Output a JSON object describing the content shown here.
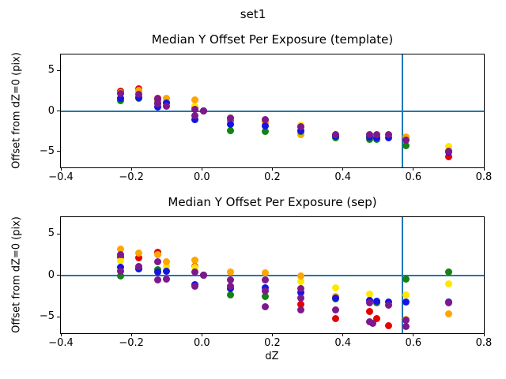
{
  "figure": {
    "suptitle": "set1",
    "background": "#ffffff",
    "text_color": "#000000",
    "spine_color": "#000000",
    "refline_color": "#1f77b4",
    "xlabel": "dZ",
    "ylabel": "Offset from dZ=0 (pix)"
  },
  "chart_data": [
    {
      "type": "scatter",
      "title": "Median Y Offset Per Exposure (template)",
      "ylabel": "Offset from dZ=0 (pix)",
      "xlabel": "",
      "xlim": [
        -0.4,
        0.8
      ],
      "ylim": [
        -7,
        7
      ],
      "grid": false,
      "legend": "none",
      "xticks": {
        "values": [
          -0.4,
          -0.2,
          0.0,
          0.2,
          0.4,
          0.6,
          0.8
        ],
        "labels": [
          "−0.4",
          "−0.2",
          "0.0",
          "0.2",
          "0.4",
          "0.6",
          "0.8"
        ]
      },
      "yticks": {
        "values": [
          5,
          0,
          -5
        ],
        "labels": [
          "5",
          "0",
          "−5"
        ]
      },
      "hline_y": 0,
      "vline_x": 0.57,
      "series": [
        {
          "name": "red",
          "color": "#e60000",
          "points": [
            [
              -0.23,
              2.45
            ],
            [
              -0.18,
              2.7
            ],
            [
              -0.125,
              1.55
            ],
            [
              -0.1,
              1.15
            ],
            [
              -0.02,
              0.45
            ],
            [
              0.005,
              0
            ],
            [
              0.08,
              -1.15
            ],
            [
              0.18,
              -1.25
            ],
            [
              0.28,
              -2.0
            ],
            [
              0.38,
              -3.0
            ],
            [
              0.475,
              -3.05
            ],
            [
              0.7,
              -5.65
            ]
          ]
        },
        {
          "name": "yellow",
          "color": "#ffe700",
          "points": [
            [
              -0.23,
              2.2
            ],
            [
              -0.18,
              2.35
            ],
            [
              -0.125,
              1.15
            ],
            [
              -0.1,
              1.3
            ],
            [
              -0.02,
              0.6
            ],
            [
              0.005,
              0
            ],
            [
              0.08,
              -0.9
            ],
            [
              0.18,
              -1.35
            ],
            [
              0.28,
              -1.75
            ],
            [
              0.38,
              -2.9
            ],
            [
              0.475,
              -2.95
            ],
            [
              0.7,
              -4.45
            ]
          ]
        },
        {
          "name": "orange",
          "color": "#ffa500",
          "points": [
            [
              -0.23,
              2.3
            ],
            [
              -0.18,
              2.55
            ],
            [
              -0.125,
              1.3
            ],
            [
              -0.1,
              1.55
            ],
            [
              -0.02,
              1.35
            ],
            [
              0.005,
              0
            ],
            [
              0.08,
              -1.0
            ],
            [
              0.18,
              -1.5
            ],
            [
              0.28,
              -2.95
            ],
            [
              0.38,
              -3.05
            ],
            [
              0.495,
              -3.2
            ],
            [
              0.58,
              -3.25
            ]
          ]
        },
        {
          "name": "green",
          "color": "#148214",
          "points": [
            [
              -0.23,
              1.3
            ],
            [
              -0.18,
              1.6
            ],
            [
              -0.125,
              0.95
            ],
            [
              0.005,
              0
            ],
            [
              0.08,
              -2.45
            ],
            [
              0.18,
              -2.5
            ],
            [
              0.28,
              -2.55
            ],
            [
              0.38,
              -3.35
            ],
            [
              0.475,
              -3.5
            ],
            [
              0.495,
              -3.55
            ],
            [
              0.58,
              -4.35
            ]
          ]
        },
        {
          "name": "blue",
          "color": "#1414e6",
          "points": [
            [
              -0.23,
              1.6
            ],
            [
              -0.18,
              1.7
            ],
            [
              -0.125,
              0.5
            ],
            [
              -0.1,
              1.0
            ],
            [
              -0.02,
              -1.05
            ],
            [
              0.005,
              0
            ],
            [
              0.08,
              -1.7
            ],
            [
              0.18,
              -1.85
            ],
            [
              0.28,
              -2.45
            ],
            [
              0.38,
              -3.15
            ],
            [
              0.475,
              -3.25
            ],
            [
              0.495,
              -3.3
            ],
            [
              0.53,
              -3.3
            ],
            [
              0.7,
              -5.1
            ]
          ]
        },
        {
          "name": "purple",
          "color": "#7d198c",
          "points": [
            [
              -0.23,
              2.2
            ],
            [
              -0.18,
              2.1
            ],
            [
              -0.125,
              1.5
            ],
            [
              -0.1,
              0.6
            ],
            [
              -0.02,
              0.15
            ],
            [
              0.005,
              0
            ],
            [
              0.08,
              -0.85
            ],
            [
              0.18,
              -1.1
            ],
            [
              0.28,
              -1.95
            ],
            [
              0.38,
              -2.95
            ],
            [
              0.475,
              -2.9
            ],
            [
              0.495,
              -2.95
            ],
            [
              0.53,
              -2.95
            ],
            [
              0.58,
              -3.6
            ],
            [
              0.7,
              -5.0
            ]
          ]
        },
        {
          "name": "purple-b",
          "color": "#7d198c",
          "points": [
            [
              -0.125,
              0.85
            ],
            [
              -0.02,
              -0.55
            ]
          ]
        }
      ]
    },
    {
      "type": "scatter",
      "title": "Median Y Offset Per Exposure (sep)",
      "ylabel": "Offset from dZ=0 (pix)",
      "xlabel": "dZ",
      "xlim": [
        -0.4,
        0.8
      ],
      "ylim": [
        -7,
        7
      ],
      "grid": false,
      "legend": "none",
      "xticks": {
        "values": [
          -0.4,
          -0.2,
          0.0,
          0.2,
          0.4,
          0.6,
          0.8
        ],
        "labels": [
          "−0.4",
          "−0.2",
          "0.0",
          "0.2",
          "0.4",
          "0.6",
          "0.8"
        ]
      },
      "yticks": {
        "values": [
          5,
          0,
          -5
        ],
        "labels": [
          "5",
          "0",
          "−5"
        ]
      },
      "hline_y": 0,
      "vline_x": 0.57,
      "series": [
        {
          "name": "red",
          "color": "#e60000",
          "points": [
            [
              -0.23,
              2.2
            ],
            [
              -0.18,
              2.1
            ],
            [
              -0.125,
              2.8
            ],
            [
              -0.02,
              1.05
            ],
            [
              0.005,
              0
            ],
            [
              0.28,
              -3.5
            ],
            [
              0.38,
              -5.2
            ],
            [
              0.475,
              -4.35
            ],
            [
              0.495,
              -5.2
            ],
            [
              0.53,
              -6.1
            ]
          ]
        },
        {
          "name": "yellow",
          "color": "#ffe700",
          "points": [
            [
              -0.23,
              1.75
            ],
            [
              -0.18,
              0.95
            ],
            [
              -0.125,
              0.5
            ],
            [
              -0.1,
              1.05
            ],
            [
              -0.02,
              0.95
            ],
            [
              0.005,
              0
            ],
            [
              0.28,
              -0.75
            ],
            [
              0.38,
              -1.5
            ],
            [
              0.475,
              -2.3
            ],
            [
              0.58,
              -2.4
            ],
            [
              0.7,
              -1.0
            ]
          ]
        },
        {
          "name": "orange",
          "color": "#ffa500",
          "points": [
            [
              -0.23,
              3.1
            ],
            [
              -0.18,
              2.7
            ],
            [
              -0.125,
              2.5
            ],
            [
              -0.1,
              1.6
            ],
            [
              -0.02,
              1.85
            ],
            [
              0.005,
              0
            ],
            [
              0.08,
              0.35
            ],
            [
              0.18,
              0.3
            ],
            [
              0.28,
              -0.1
            ],
            [
              0.38,
              -2.6
            ],
            [
              0.58,
              -5.3
            ],
            [
              0.7,
              -4.7
            ]
          ]
        },
        {
          "name": "green",
          "color": "#148214",
          "points": [
            [
              -0.23,
              -0.05
            ],
            [
              -0.18,
              0.8
            ],
            [
              -0.125,
              0.65
            ],
            [
              0.005,
              0
            ],
            [
              0.08,
              -2.4
            ],
            [
              0.18,
              -2.6
            ],
            [
              0.38,
              -2.85
            ],
            [
              0.495,
              -3.3
            ],
            [
              0.58,
              -0.45
            ],
            [
              0.7,
              0.35
            ]
          ]
        },
        {
          "name": "blue",
          "color": "#1414e6",
          "points": [
            [
              -0.23,
              0.95
            ],
            [
              -0.18,
              0.75
            ],
            [
              -0.125,
              0.35
            ],
            [
              -0.1,
              0.45
            ],
            [
              -0.02,
              -1.1
            ],
            [
              0.005,
              0
            ],
            [
              0.08,
              -1.65
            ],
            [
              0.18,
              -1.5
            ],
            [
              0.28,
              -2.1
            ],
            [
              0.38,
              -2.8
            ],
            [
              0.475,
              -3.05
            ],
            [
              0.495,
              -3.1
            ],
            [
              0.53,
              -3.2
            ],
            [
              0.58,
              -3.2
            ],
            [
              0.7,
              -3.2
            ]
          ]
        },
        {
          "name": "purple",
          "color": "#7d198c",
          "points": [
            [
              -0.23,
              2.5
            ],
            [
              -0.18,
              1.05
            ],
            [
              -0.125,
              1.6
            ],
            [
              -0.1,
              -0.45
            ],
            [
              -0.02,
              0.35
            ],
            [
              0.005,
              0
            ],
            [
              0.08,
              -0.55
            ],
            [
              0.18,
              -0.55
            ],
            [
              0.28,
              -1.65
            ],
            [
              0.38,
              -4.15
            ],
            [
              0.475,
              -3.3
            ],
            [
              0.485,
              -5.8
            ],
            [
              0.53,
              -3.6
            ],
            [
              0.58,
              -5.4
            ],
            [
              0.7,
              -3.3
            ]
          ]
        },
        {
          "name": "purple-b",
          "color": "#7d198c",
          "points": [
            [
              -0.23,
              0.45
            ],
            [
              -0.125,
              -0.55
            ],
            [
              -0.02,
              -1.35
            ],
            [
              0.08,
              -1.35
            ],
            [
              0.18,
              -1.95
            ],
            [
              0.28,
              -2.8
            ],
            [
              0.475,
              -5.65
            ],
            [
              0.58,
              -6.15
            ]
          ]
        },
        {
          "name": "purple-c",
          "color": "#7d198c",
          "points": [
            [
              0.18,
              -3.8
            ],
            [
              0.28,
              -4.15
            ]
          ]
        }
      ]
    }
  ]
}
